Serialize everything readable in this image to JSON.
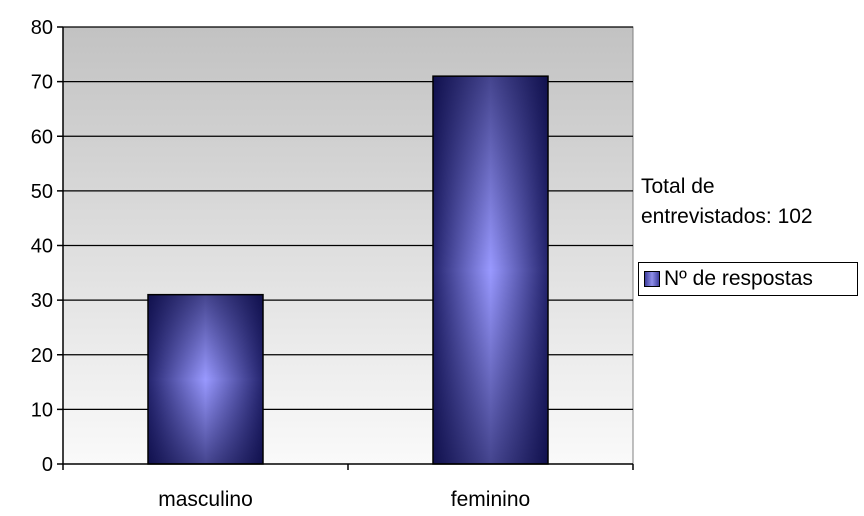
{
  "chart_data": {
    "type": "bar",
    "categories": [
      "masculino",
      "feminino"
    ],
    "series": [
      {
        "name": "Nº de respostas",
        "values": [
          31,
          71
        ]
      }
    ],
    "ylim": [
      0,
      80
    ],
    "yticks": [
      "0",
      "10",
      "20",
      "30",
      "40",
      "50",
      "60",
      "70",
      "80"
    ],
    "grid": true,
    "legend_position": "right",
    "annotation_lines": [
      "Total de",
      "entrevistados: 102"
    ],
    "colors": {
      "bar_edge": "#24246e",
      "bar_center": "#9999ff",
      "plot_top": "#c2c2c2",
      "plot_bottom": "#fafafa",
      "gridline": "#000000"
    }
  }
}
